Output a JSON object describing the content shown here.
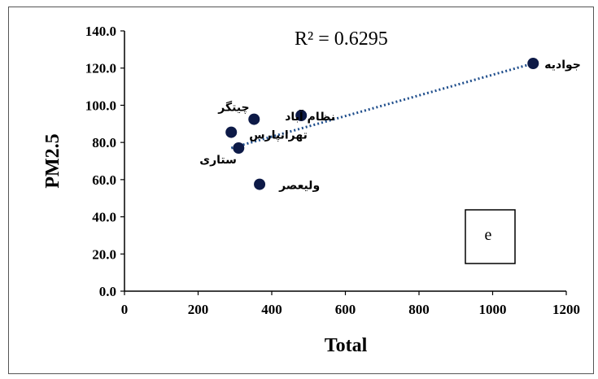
{
  "chart_data": {
    "type": "scatter",
    "xlabel": "Total",
    "ylabel": "PM2.5",
    "xlim": [
      0,
      1200
    ],
    "ylim": [
      0,
      140
    ],
    "x_ticks": [
      "0",
      "200",
      "400",
      "600",
      "800",
      "1000",
      "1200"
    ],
    "y_ticks": [
      "0.0",
      "20.0",
      "40.0",
      "60.0",
      "80.0",
      "100.0",
      "120.0",
      "140.0"
    ],
    "points": [
      {
        "label": "جوادیه",
        "x": 1110,
        "y": 122.5
      },
      {
        "label": "نظام آباد",
        "x": 480,
        "y": 94.5
      },
      {
        "label": "چیتگر",
        "x": 352,
        "y": 92.5
      },
      {
        "label": "تهرانپارس",
        "x": 290,
        "y": 85.5
      },
      {
        "label": "ستاری",
        "x": 310,
        "y": 77
      },
      {
        "label": "ولیعصر",
        "x": 367,
        "y": 57.5
      }
    ],
    "trendline": {
      "type": "linear",
      "style": "dotted",
      "from": {
        "x": 290,
        "y": 77
      },
      "to": {
        "x": 1110,
        "y": 122.5
      }
    },
    "r_squared_label": "R² = 0.6295",
    "panel_label": "e",
    "grid": false,
    "colors": {
      "marker": "#0d1a47",
      "trendline": "#1f4e8c",
      "axis": "#000000"
    }
  }
}
